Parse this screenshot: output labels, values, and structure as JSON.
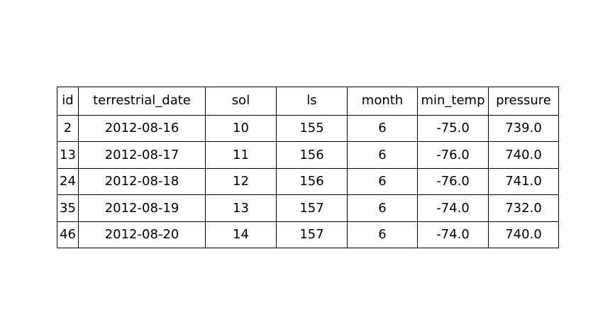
{
  "chart_data": {
    "type": "table",
    "columns": [
      "id",
      "terrestrial_date",
      "sol",
      "ls",
      "month",
      "min_temp",
      "pressure"
    ],
    "rows": [
      [
        "2",
        "2012-08-16",
        "10",
        "155",
        "6",
        "-75.0",
        "739.0"
      ],
      [
        "13",
        "2012-08-17",
        "11",
        "156",
        "6",
        "-76.0",
        "740.0"
      ],
      [
        "24",
        "2012-08-18",
        "12",
        "156",
        "6",
        "-76.0",
        "741.0"
      ],
      [
        "35",
        "2012-08-19",
        "13",
        "157",
        "6",
        "-74.0",
        "732.0"
      ],
      [
        "46",
        "2012-08-20",
        "14",
        "157",
        "6",
        "-74.0",
        "740.0"
      ]
    ]
  }
}
